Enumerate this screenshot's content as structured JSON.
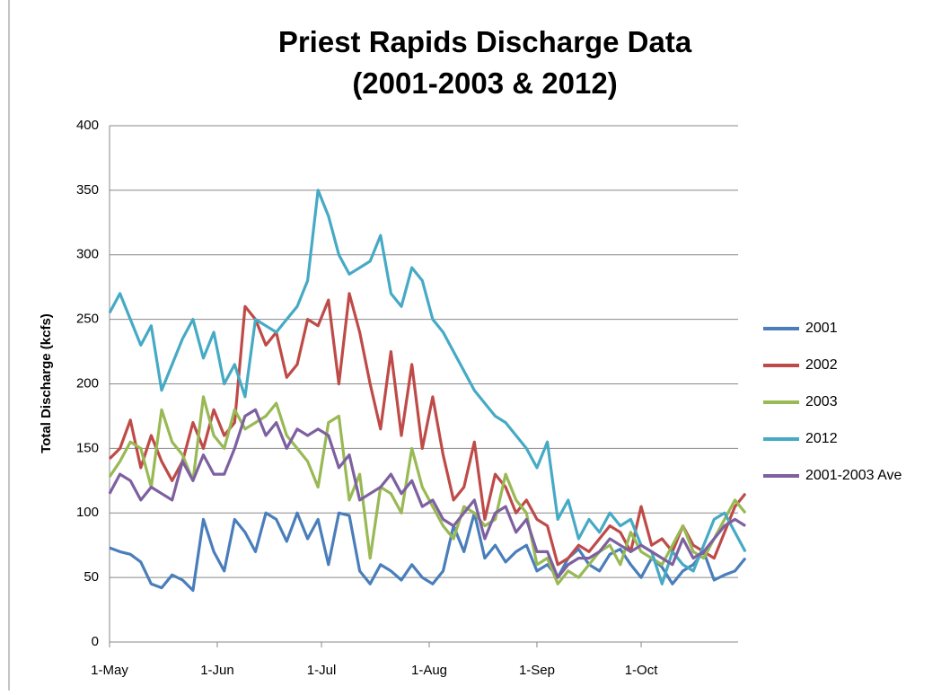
{
  "chart_data": {
    "type": "line",
    "title": [
      "Priest Rapids Discharge Data",
      "(2001-2003 & 2012)"
    ],
    "y_label": "Total Discharge (kcfs)",
    "x": [
      0,
      3,
      6,
      9,
      12,
      15,
      18,
      21,
      24,
      27,
      30,
      33,
      36,
      39,
      42,
      45,
      48,
      51,
      54,
      57,
      60,
      63,
      66,
      69,
      72,
      75,
      78,
      81,
      84,
      87,
      90,
      93,
      96,
      99,
      102,
      105,
      108,
      111,
      114,
      117,
      120,
      123,
      126,
      129,
      132,
      135,
      138,
      141,
      144,
      147,
      150,
      153,
      156,
      159,
      162,
      165,
      168,
      171,
      174,
      177,
      180,
      183
    ],
    "xlim": [
      0,
      184
    ],
    "xticks": [
      {
        "value": 0,
        "label": "1-May"
      },
      {
        "value": 31,
        "label": "1-Jun"
      },
      {
        "value": 61,
        "label": "1-Jul"
      },
      {
        "value": 92,
        "label": "1-Aug"
      },
      {
        "value": 123,
        "label": "1-Sep"
      },
      {
        "value": 153,
        "label": "1-Oct"
      }
    ],
    "ylim": [
      0,
      400
    ],
    "yticks": [
      0,
      50,
      100,
      150,
      200,
      250,
      300,
      350,
      400
    ],
    "grid": true,
    "legend": "right",
    "series": [
      {
        "name": "2001",
        "color": "#4a7ebb",
        "values": [
          73,
          70,
          68,
          62,
          45,
          42,
          52,
          48,
          40,
          95,
          70,
          55,
          95,
          85,
          70,
          100,
          95,
          78,
          100,
          80,
          95,
          60,
          100,
          98,
          55,
          45,
          60,
          55,
          48,
          60,
          50,
          45,
          55,
          90,
          70,
          100,
          65,
          75,
          62,
          70,
          75,
          55,
          60,
          50,
          65,
          72,
          60,
          55,
          68,
          72,
          60,
          50,
          65,
          58,
          45,
          55,
          60,
          70,
          48,
          52,
          55,
          65
        ]
      },
      {
        "name": "2002",
        "color": "#be4b48",
        "values": [
          142,
          150,
          172,
          135,
          160,
          140,
          125,
          140,
          170,
          150,
          180,
          160,
          170,
          260,
          250,
          230,
          240,
          205,
          215,
          250,
          245,
          265,
          200,
          270,
          240,
          200,
          165,
          225,
          160,
          215,
          150,
          190,
          145,
          110,
          120,
          155,
          95,
          130,
          120,
          100,
          110,
          95,
          90,
          60,
          65,
          75,
          70,
          80,
          90,
          85,
          70,
          105,
          75,
          80,
          70,
          90,
          75,
          70,
          65,
          85,
          105,
          115
        ]
      },
      {
        "name": "2003",
        "color": "#98b954",
        "values": [
          128,
          140,
          155,
          150,
          120,
          180,
          155,
          145,
          125,
          190,
          160,
          150,
          180,
          165,
          170,
          175,
          185,
          160,
          150,
          140,
          120,
          170,
          175,
          110,
          130,
          65,
          120,
          115,
          100,
          150,
          120,
          105,
          90,
          80,
          105,
          100,
          90,
          95,
          130,
          110,
          100,
          60,
          65,
          45,
          55,
          50,
          60,
          70,
          75,
          60,
          85,
          70,
          65,
          60,
          75,
          90,
          70,
          65,
          80,
          95,
          110,
          100
        ]
      },
      {
        "name": "2012",
        "color": "#46aac5",
        "values": [
          255,
          270,
          250,
          230,
          245,
          195,
          215,
          235,
          250,
          220,
          240,
          200,
          215,
          190,
          250,
          245,
          240,
          250,
          260,
          280,
          350,
          330,
          300,
          285,
          290,
          295,
          315,
          270,
          260,
          290,
          280,
          250,
          240,
          225,
          210,
          195,
          185,
          175,
          170,
          160,
          150,
          135,
          155,
          95,
          110,
          80,
          95,
          85,
          100,
          90,
          95,
          75,
          70,
          45,
          70,
          60,
          55,
          75,
          95,
          100,
          85,
          70
        ]
      },
      {
        "name": "2001-2003 Ave",
        "color": "#7d60a0",
        "values": [
          115,
          130,
          125,
          110,
          120,
          115,
          110,
          140,
          125,
          145,
          130,
          130,
          150,
          175,
          180,
          160,
          170,
          150,
          165,
          160,
          165,
          160,
          135,
          145,
          110,
          115,
          120,
          130,
          115,
          125,
          105,
          110,
          95,
          90,
          100,
          110,
          80,
          100,
          105,
          85,
          95,
          70,
          70,
          50,
          60,
          65,
          65,
          70,
          80,
          75,
          70,
          75,
          70,
          65,
          60,
          80,
          65,
          70,
          80,
          90,
          95,
          90
        ]
      }
    ]
  }
}
